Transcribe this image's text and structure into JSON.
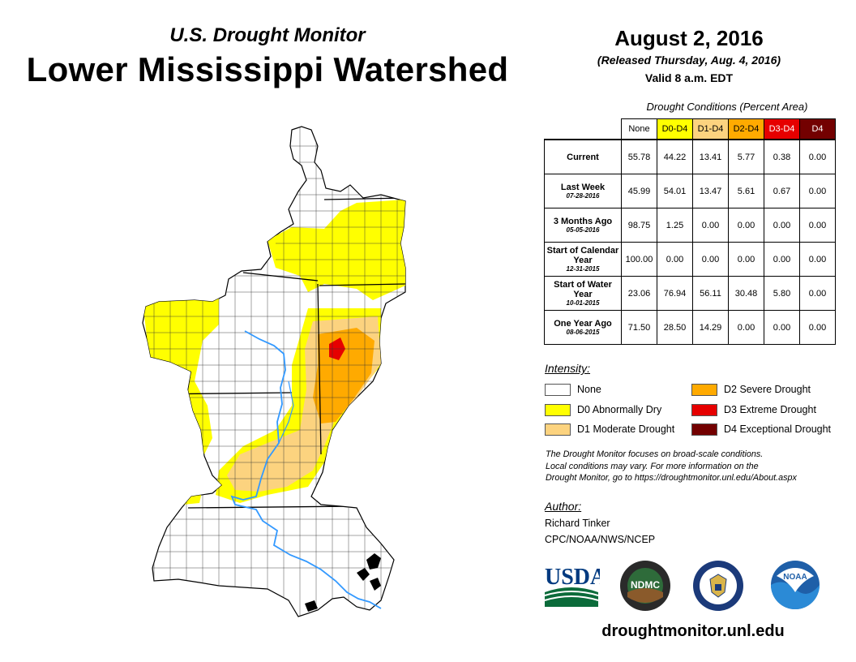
{
  "header": {
    "subtitle": "U.S. Drought Monitor",
    "title": "Lower Mississippi Watershed",
    "date": "August 2, 2016",
    "released": "(Released Thursday, Aug. 4, 2016)",
    "valid": "Valid 8 a.m. EDT"
  },
  "colors": {
    "none": "#ffffff",
    "d0": "#ffff00",
    "d1": "#fcd37f",
    "d2": "#ffaa00",
    "d3": "#e60000",
    "d4": "#730000",
    "river": "#3399ff"
  },
  "table": {
    "caption": "Drought Conditions (Percent Area)",
    "headers": [
      "None",
      "D0-D4",
      "D1-D4",
      "D2-D4",
      "D3-D4",
      "D4"
    ],
    "rows": [
      {
        "label": "Current",
        "date": "",
        "values": [
          "55.78",
          "44.22",
          "13.41",
          "5.77",
          "0.38",
          "0.00"
        ]
      },
      {
        "label": "Last Week",
        "date": "07-28-2016",
        "values": [
          "45.99",
          "54.01",
          "13.47",
          "5.61",
          "0.67",
          "0.00"
        ]
      },
      {
        "label": "3 Months Ago",
        "date": "05-05-2016",
        "values": [
          "98.75",
          "1.25",
          "0.00",
          "0.00",
          "0.00",
          "0.00"
        ]
      },
      {
        "label": "Start of Calendar Year",
        "date": "12-31-2015",
        "values": [
          "100.00",
          "0.00",
          "0.00",
          "0.00",
          "0.00",
          "0.00"
        ]
      },
      {
        "label": "Start of Water Year",
        "date": "10-01-2015",
        "values": [
          "23.06",
          "76.94",
          "56.11",
          "30.48",
          "5.80",
          "0.00"
        ]
      },
      {
        "label": "One Year Ago",
        "date": "08-06-2015",
        "values": [
          "71.50",
          "28.50",
          "14.29",
          "0.00",
          "0.00",
          "0.00"
        ]
      }
    ]
  },
  "legend": {
    "title": "Intensity:",
    "items": [
      {
        "key": "none",
        "label": "None"
      },
      {
        "key": "d0",
        "label": "D0 Abnormally Dry"
      },
      {
        "key": "d1",
        "label": "D1 Moderate Drought"
      },
      {
        "key": "d2",
        "label": "D2 Severe Drought"
      },
      {
        "key": "d3",
        "label": "D3 Extreme Drought"
      },
      {
        "key": "d4",
        "label": "D4 Exceptional Drought"
      }
    ]
  },
  "disclaimer": {
    "line1": "The Drought Monitor focuses on broad-scale conditions.",
    "line2": "Local conditions may vary. For more information on the",
    "line3": "Drought Monitor, go to https://droughtmonitor.unl.edu/About.aspx"
  },
  "author": {
    "title": "Author:",
    "name": "Richard Tinker",
    "org": "CPC/NOAA/NWS/NCEP"
  },
  "logos": {
    "usda": "USDA",
    "ndmc": "NDMC",
    "noaa": "NOAA"
  },
  "website": "droughtmonitor.unl.edu"
}
